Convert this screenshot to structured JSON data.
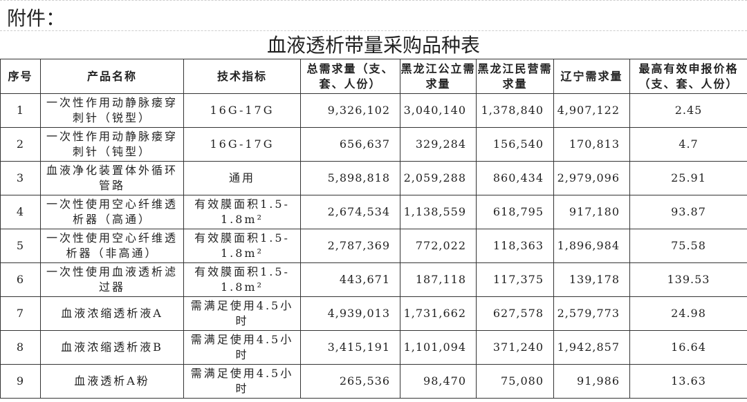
{
  "attachment_label": "附件：",
  "title": "血液透析带量采购品种表",
  "headers": [
    "序号",
    "产品名称",
    "技术指标",
    "总需求量（支、套、人份）",
    "黑龙江公立需求量",
    "黑龙江民营需求量",
    "辽宁需求量",
    "最高有效申报价格（支、套、人份）"
  ],
  "rows": [
    [
      "1",
      "一次性作用动静脉瘘穿刺针（锐型）",
      "16G-17G",
      "9,326,102",
      "3,040,140",
      "1,378,840",
      "4,907,122",
      "2.45"
    ],
    [
      "2",
      "一次性作用动静脉瘘穿刺针（钝型）",
      "16G-17G",
      "656,637",
      "329,284",
      "156,540",
      "170,813",
      "4.7"
    ],
    [
      "3",
      "血液净化装置体外循环管路",
      "通用",
      "5,898,818",
      "2,059,288",
      "860,434",
      "2,979,096",
      "25.91"
    ],
    [
      "4",
      "一次性使用空心纤维透析器（高通）",
      "有效膜面积1.5-1.8m²",
      "2,674,534",
      "1,138,559",
      "618,795",
      "917,180",
      "93.87"
    ],
    [
      "5",
      "一次性使用空心纤维透析器（非高通）",
      "有效膜面积1.5-1.8m²",
      "2,787,369",
      "772,022",
      "118,363",
      "1,896,984",
      "75.58"
    ],
    [
      "6",
      "一次性使用血液透析滤过器",
      "有效膜面积1.5-1.8m²",
      "443,671",
      "187,118",
      "117,375",
      "139,178",
      "139.53"
    ],
    [
      "7",
      "血液浓缩透析液A",
      "需满足使用4.5小时",
      "4,939,013",
      "1,731,662",
      "627,578",
      "2,579,773",
      "24.98"
    ],
    [
      "8",
      "血液浓缩透析液B",
      "需满足使用4.5小时",
      "3,415,191",
      "1,101,094",
      "371,240",
      "1,942,857",
      "16.64"
    ],
    [
      "9",
      "血液透析A粉",
      "需满足使用4.5小时",
      "265,536",
      "98,470",
      "75,080",
      "91,986",
      "13.63"
    ]
  ]
}
